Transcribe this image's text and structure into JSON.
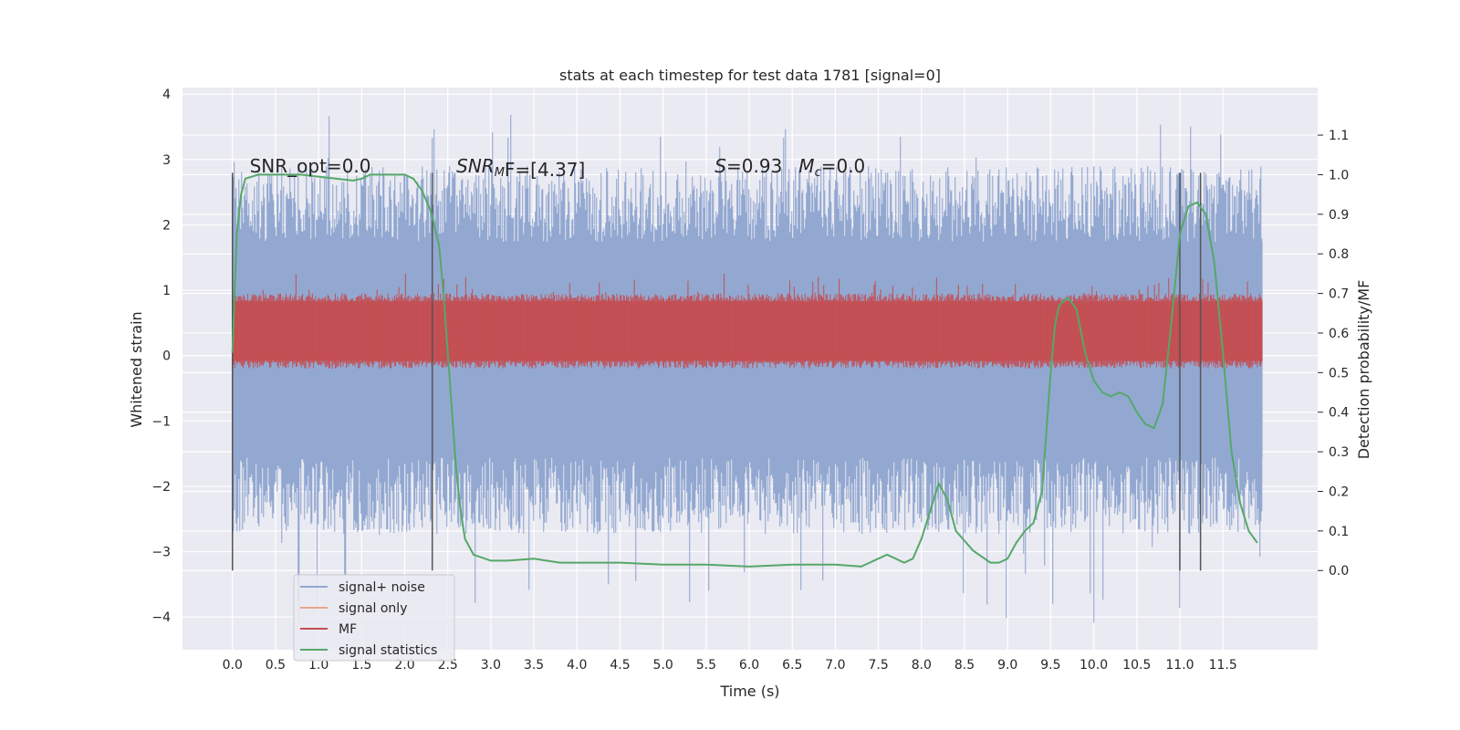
{
  "chart_data": {
    "type": "line",
    "title": "stats at each timestep for test data 1781 [signal=0]",
    "xlabel": "Time (s)",
    "ylabel": "Whitened strain",
    "y2label": "Detection probability/MF",
    "xlim": [
      -0.58,
      12.6
    ],
    "ylim": [
      -4.5,
      4.1
    ],
    "y2lim": [
      -0.2,
      1.22
    ],
    "x_ticks": [
      0.0,
      0.5,
      1.0,
      1.5,
      2.0,
      2.5,
      3.0,
      3.5,
      4.0,
      4.5,
      5.0,
      5.5,
      6.0,
      6.5,
      7.0,
      7.5,
      8.0,
      8.5,
      9.0,
      9.5,
      10.0,
      10.5,
      11.0,
      11.5
    ],
    "x_tick_labels": [
      "0.0",
      "0.5",
      "1.0",
      "1.5",
      "2.0",
      "2.5",
      "3.0",
      "3.5",
      "4.0",
      "4.5",
      "5.0",
      "5.5",
      "6.0",
      "6.5",
      "7.0",
      "7.5",
      "8.0",
      "8.5",
      "9.0",
      "9.5",
      "10.0",
      "10.5",
      "11.0",
      "11.5"
    ],
    "y_ticks": [
      -4,
      -3,
      -2,
      -1,
      0,
      1,
      2,
      3,
      4
    ],
    "y_tick_labels": [
      "−4",
      "−3",
      "−2",
      "−1",
      "0",
      "1",
      "2",
      "3",
      "4"
    ],
    "y2_ticks": [
      0.0,
      0.1,
      0.2,
      0.3,
      0.4,
      0.5,
      0.6,
      0.7,
      0.8,
      0.9,
      1.0,
      1.1
    ],
    "y2_tick_labels": [
      "0.0",
      "0.1",
      "0.2",
      "0.3",
      "0.4",
      "0.5",
      "0.6",
      "0.7",
      "0.8",
      "0.9",
      "1.0",
      "1.1"
    ],
    "grid": true,
    "legend_placement": "lower-left",
    "noise_band": {
      "x_start": 0.0,
      "x_end": 11.96,
      "y_low": -2.6,
      "y_high": 2.9,
      "spike_min": -4.1,
      "spike_max": 3.7
    },
    "mf_band": {
      "x_start": 0.0,
      "x_end": 11.96,
      "y2_low": 0.53,
      "y2_high": 0.68
    },
    "vertical_markers": [
      0.0,
      2.32,
      11.0,
      11.24
    ],
    "series": [
      {
        "name": "signal+ noise",
        "color": "#92a8d1",
        "axis": "left"
      },
      {
        "name": "signal only",
        "color": "#e8a58c",
        "axis": "left"
      },
      {
        "name": "MF",
        "color": "#c44e52",
        "axis": "right"
      },
      {
        "name": "signal statistics",
        "color": "#55a868",
        "axis": "right",
        "x": [
          0.0,
          0.05,
          0.1,
          0.15,
          0.3,
          0.5,
          0.8,
          1.0,
          1.2,
          1.4,
          1.5,
          1.6,
          1.8,
          2.0,
          2.1,
          2.2,
          2.3,
          2.4,
          2.45,
          2.5,
          2.55,
          2.6,
          2.65,
          2.7,
          2.8,
          3.0,
          3.2,
          3.5,
          3.8,
          4.0,
          4.5,
          5.0,
          5.5,
          6.0,
          6.5,
          7.0,
          7.3,
          7.5,
          7.6,
          7.7,
          7.8,
          7.9,
          8.0,
          8.1,
          8.2,
          8.3,
          8.4,
          8.6,
          8.8,
          8.9,
          9.0,
          9.1,
          9.2,
          9.3,
          9.4,
          9.5,
          9.55,
          9.6,
          9.7,
          9.8,
          9.9,
          10.0,
          10.1,
          10.2,
          10.3,
          10.4,
          10.5,
          10.6,
          10.7,
          10.8,
          10.9,
          11.0,
          11.1,
          11.2,
          11.3,
          11.4,
          11.5,
          11.6,
          11.7,
          11.8,
          11.9
        ],
        "values": [
          0.55,
          0.85,
          0.95,
          0.99,
          1.0,
          1.0,
          1.0,
          0.995,
          0.99,
          0.985,
          0.99,
          1.0,
          1.0,
          1.0,
          0.99,
          0.96,
          0.91,
          0.82,
          0.7,
          0.55,
          0.4,
          0.25,
          0.15,
          0.08,
          0.04,
          0.025,
          0.025,
          0.03,
          0.02,
          0.02,
          0.02,
          0.015,
          0.015,
          0.01,
          0.015,
          0.015,
          0.01,
          0.03,
          0.04,
          0.03,
          0.02,
          0.03,
          0.08,
          0.15,
          0.22,
          0.18,
          0.1,
          0.05,
          0.02,
          0.02,
          0.03,
          0.07,
          0.1,
          0.12,
          0.2,
          0.5,
          0.62,
          0.67,
          0.69,
          0.66,
          0.55,
          0.48,
          0.45,
          0.44,
          0.45,
          0.44,
          0.4,
          0.37,
          0.36,
          0.42,
          0.62,
          0.85,
          0.92,
          0.93,
          0.9,
          0.78,
          0.55,
          0.3,
          0.17,
          0.1,
          0.07
        ]
      }
    ],
    "annotations": [
      {
        "x": 0.2,
        "y": 2.9,
        "text": "SNR_opt=0.0"
      },
      {
        "x": 2.6,
        "y": 2.9,
        "text_main": "SNR",
        "text_sub": "M",
        "text_rest": "F=[4.37]"
      },
      {
        "x": 5.6,
        "y": 2.9,
        "text_main": "S",
        "text_rest": "=0.93",
        "text_main2": "M",
        "text_sub2": "c",
        "text_rest2": "=0.0"
      }
    ]
  }
}
